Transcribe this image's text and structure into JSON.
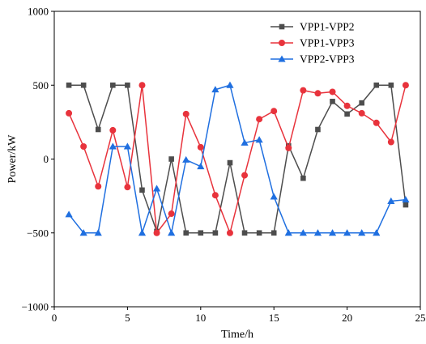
{
  "chart_data": {
    "type": "line",
    "xlabel": "Time/h",
    "ylabel": "Power/kW",
    "xlim": [
      0,
      25
    ],
    "ylim": [
      -1000,
      1000
    ],
    "xticks": [
      0,
      5,
      10,
      15,
      20,
      25
    ],
    "yticks": [
      -1000,
      -500,
      0,
      500,
      1000
    ],
    "xtick_labels": [
      "0",
      "5",
      "10",
      "15",
      "20",
      "25"
    ],
    "ytick_labels": [
      "−1000",
      "−500",
      "0",
      "500",
      "1000"
    ],
    "grid": false,
    "legend_position": "top-right",
    "x": [
      1,
      2,
      3,
      4,
      5,
      6,
      7,
      8,
      9,
      10,
      11,
      12,
      13,
      14,
      15,
      16,
      17,
      18,
      19,
      20,
      21,
      22,
      23,
      24
    ],
    "series": [
      {
        "name": "VPP1-VPP2",
        "color": "#4d4d4d",
        "marker": "square",
        "values": [
          500,
          500,
          200,
          500,
          500,
          -210,
          -490,
          0,
          -500,
          -500,
          -500,
          -25,
          -500,
          -500,
          -500,
          90,
          -130,
          200,
          390,
          305,
          380,
          500,
          500,
          -310
        ]
      },
      {
        "name": "VPP1-VPP3",
        "color": "#e8333c",
        "marker": "circle",
        "values": [
          310,
          85,
          -185,
          195,
          -190,
          500,
          -500,
          -370,
          305,
          80,
          -245,
          -500,
          -110,
          270,
          325,
          75,
          465,
          445,
          455,
          360,
          310,
          245,
          115,
          500
        ]
      },
      {
        "name": "VPP2-VPP3",
        "color": "#1f6fe0",
        "marker": "triangle",
        "values": [
          -375,
          -500,
          -500,
          85,
          85,
          -500,
          -200,
          -500,
          -5,
          -50,
          470,
          500,
          110,
          130,
          -255,
          -500,
          -500,
          -500,
          -500,
          -500,
          -500,
          -500,
          -285,
          -275
        ]
      }
    ]
  }
}
